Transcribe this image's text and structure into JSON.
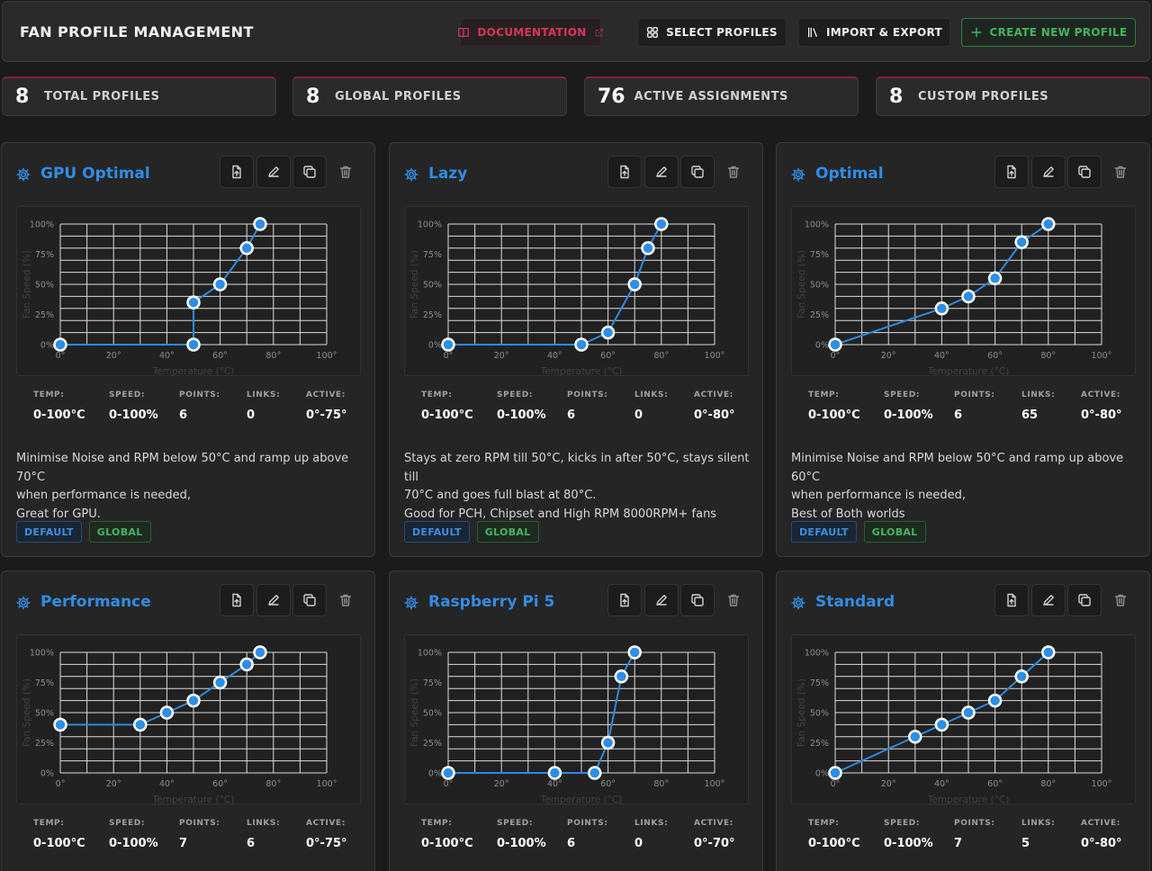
{
  "header": {
    "title": "FAN PROFILE MANAGEMENT",
    "buttons": {
      "documentation": "DOCUMENTATION",
      "select": "SELECT PROFILES",
      "import_export": "IMPORT & EXPORT",
      "create": "CREATE NEW PROFILE"
    }
  },
  "stats": [
    {
      "value": "8",
      "label": "TOTAL PROFILES"
    },
    {
      "value": "8",
      "label": "GLOBAL PROFILES"
    },
    {
      "value": "76",
      "label": "ACTIVE ASSIGNMENTS"
    },
    {
      "value": "8",
      "label": "CUSTOM PROFILES"
    }
  ],
  "colors": {
    "accent_blue": "#2f8de4",
    "accent_red": "#d9345a",
    "accent_green": "#3fb55c",
    "curve": "#2b8be0",
    "point_fill": "#2d8ee6"
  },
  "chart_labels": {
    "y_ticks": [
      "0%",
      "25%",
      "50%",
      "75%",
      "100%"
    ],
    "x_ticks": [
      "0°",
      "20°",
      "40°",
      "60°",
      "80°",
      "100°"
    ],
    "x_title": "Temperature (°C)",
    "y_title": "Fan Speed (%)"
  },
  "stat_labels": {
    "temp": "TEMP:",
    "speed": "SPEED:",
    "points": "POINTS:",
    "links": "LINKS:",
    "active": "ACTIVE:"
  },
  "profiles": [
    {
      "name": "GPU Optimal",
      "temp": "0-100°C",
      "speed": "0-100%",
      "points": "6",
      "links": "0",
      "active": "0°-75°",
      "description": [
        "Minimise Noise and RPM below 50°C and ramp up above 70°C",
        "when performance is needed,",
        "Great for GPU."
      ],
      "badges": [
        "DEFAULT",
        "GLOBAL"
      ],
      "chart_data": {
        "type": "line",
        "x": [
          0,
          50,
          50,
          60,
          70,
          75
        ],
        "y": [
          0,
          0,
          35,
          50,
          80,
          100
        ],
        "xlim": [
          0,
          100
        ],
        "ylim": [
          0,
          100
        ],
        "xlabel": "Temperature (°C)",
        "ylabel": "Fan Speed (%)"
      }
    },
    {
      "name": "Lazy",
      "temp": "0-100°C",
      "speed": "0-100%",
      "points": "6",
      "links": "0",
      "active": "0°-80°",
      "description": [
        "Stays at zero RPM till 50°C, kicks in after 50°C, stays silent till",
        "70°C and goes full blast at 80°C.",
        "Good for PCH, Chipset and High RPM 8000RPM+ fans"
      ],
      "badges": [
        "DEFAULT",
        "GLOBAL"
      ],
      "chart_data": {
        "type": "line",
        "x": [
          0,
          50,
          60,
          70,
          75,
          80
        ],
        "y": [
          0,
          0,
          10,
          50,
          80,
          100
        ],
        "xlim": [
          0,
          100
        ],
        "ylim": [
          0,
          100
        ],
        "xlabel": "Temperature (°C)",
        "ylabel": "Fan Speed (%)"
      }
    },
    {
      "name": "Optimal",
      "temp": "0-100°C",
      "speed": "0-100%",
      "points": "6",
      "links": "65",
      "active": "0°-80°",
      "description": [
        "Minimise Noise and RPM below 50°C and ramp up above 60°C",
        "when performance is needed,",
        "Best of Both worlds"
      ],
      "badges": [
        "DEFAULT",
        "GLOBAL"
      ],
      "chart_data": {
        "type": "line",
        "x": [
          0,
          40,
          50,
          60,
          70,
          80
        ],
        "y": [
          0,
          30,
          40,
          55,
          85,
          100
        ],
        "xlim": [
          0,
          100
        ],
        "ylim": [
          0,
          100
        ],
        "xlabel": "Temperature (°C)",
        "ylabel": "Fan Speed (%)"
      }
    },
    {
      "name": "Performance",
      "temp": "0-100°C",
      "speed": "0-100%",
      "points": "7",
      "links": "6",
      "active": "0°-75°",
      "description": [],
      "badges": [],
      "chart_data": {
        "type": "line",
        "x": [
          0,
          30,
          40,
          50,
          60,
          70,
          75
        ],
        "y": [
          40,
          40,
          50,
          60,
          75,
          90,
          100
        ],
        "xlim": [
          0,
          100
        ],
        "ylim": [
          0,
          100
        ],
        "xlabel": "Temperature (°C)",
        "ylabel": "Fan Speed (%)"
      }
    },
    {
      "name": "Raspberry Pi 5",
      "temp": "0-100°C",
      "speed": "0-100%",
      "points": "6",
      "links": "0",
      "active": "0°-70°",
      "description": [],
      "badges": [],
      "chart_data": {
        "type": "line",
        "x": [
          0,
          40,
          55,
          60,
          65,
          70
        ],
        "y": [
          0,
          0,
          0,
          25,
          80,
          100
        ],
        "xlim": [
          0,
          100
        ],
        "ylim": [
          0,
          100
        ],
        "xlabel": "Temperature (°C)",
        "ylabel": "Fan Speed (%)"
      }
    },
    {
      "name": "Standard",
      "temp": "0-100°C",
      "speed": "0-100%",
      "points": "7",
      "links": "5",
      "active": "0°-80°",
      "description": [],
      "badges": [],
      "chart_data": {
        "type": "line",
        "x": [
          0,
          30,
          40,
          50,
          60,
          70,
          80
        ],
        "y": [
          0,
          30,
          40,
          50,
          60,
          80,
          100
        ],
        "xlim": [
          0,
          100
        ],
        "ylim": [
          0,
          100
        ],
        "xlabel": "Temperature (°C)",
        "ylabel": "Fan Speed (%)"
      }
    }
  ]
}
